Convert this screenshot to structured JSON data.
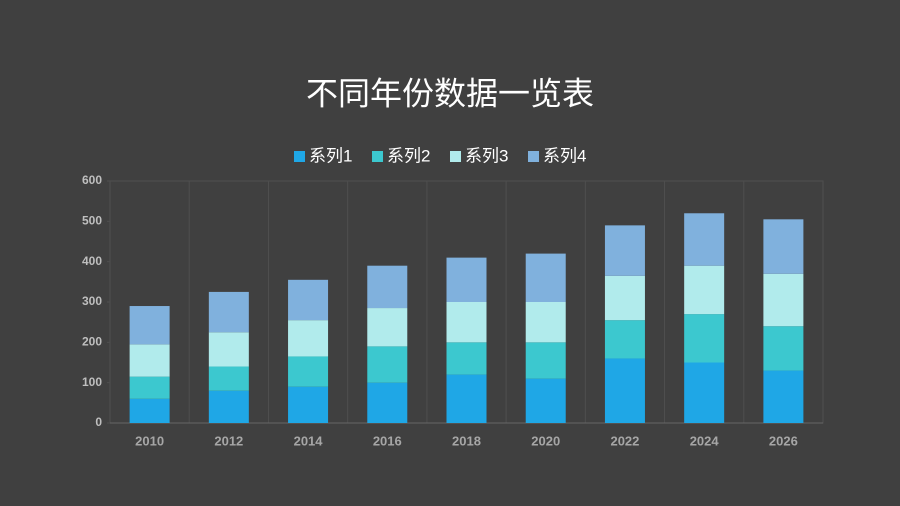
{
  "chart_data": {
    "type": "stacked-bar",
    "title": "不同年份数据一览表",
    "categories": [
      "2010",
      "2012",
      "2014",
      "2016",
      "2018",
      "2020",
      "2022",
      "2024",
      "2026"
    ],
    "series": [
      {
        "name": "系列1",
        "color": "#1fa7e6",
        "values": [
          60,
          80,
          90,
          100,
          120,
          110,
          160,
          150,
          130
        ]
      },
      {
        "name": "系列2",
        "color": "#3cc8cf",
        "values": [
          55,
          60,
          75,
          90,
          80,
          90,
          95,
          120,
          110
        ]
      },
      {
        "name": "系列3",
        "color": "#b1ebec",
        "values": [
          80,
          85,
          90,
          95,
          100,
          100,
          110,
          120,
          130
        ]
      },
      {
        "name": "系列4",
        "color": "#80b1dd",
        "values": [
          95,
          100,
          100,
          105,
          110,
          120,
          125,
          130,
          135
        ]
      }
    ],
    "ylim": [
      0,
      600
    ],
    "yticks": [
      0,
      100,
      200,
      300,
      400,
      500,
      600
    ],
    "legend": "top"
  }
}
